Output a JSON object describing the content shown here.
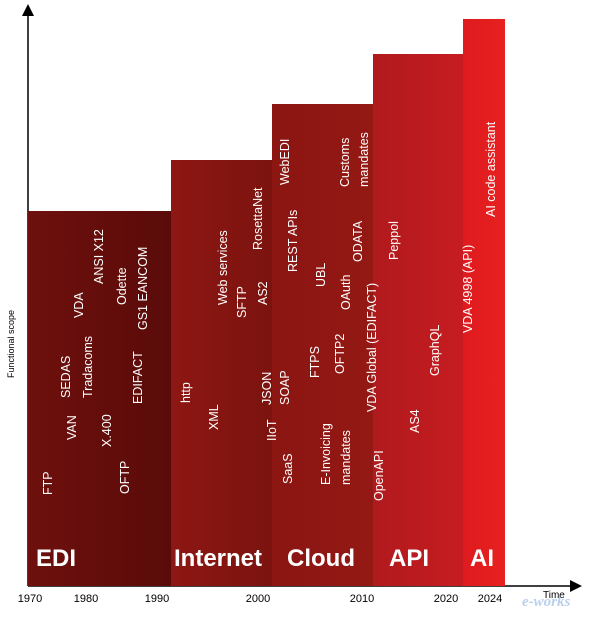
{
  "axes": {
    "y_label": "Functional scope",
    "x_label": "Time",
    "ticks": [
      "1970",
      "1980",
      "1990",
      "2000",
      "2010",
      "2020",
      "2024"
    ]
  },
  "eras": [
    {
      "label": "EDI",
      "color": "#6a0f0c"
    },
    {
      "label": "Internet",
      "color": "#8a1712"
    },
    {
      "label": "Cloud",
      "color": "#8a1712"
    },
    {
      "label": "API",
      "color": "#b51a1e"
    },
    {
      "label": "AI",
      "color": "#e01b1e"
    }
  ],
  "technologies": {
    "edi": [
      "FTP",
      "VAN",
      "SEDAS",
      "VDA",
      "Tradacoms",
      "X.400",
      "ANSI X12",
      "Odette",
      "OFTP",
      "EDIFACT",
      "GS1 EANCOM"
    ],
    "internet": [
      "http",
      "XML",
      "Web services",
      "SFTP",
      "IIoT",
      "RosettaNet",
      "JSON",
      "AS2",
      "SOAP"
    ],
    "cloud": [
      "SaaS",
      "WebEDI",
      "REST APIs",
      "FTPS",
      "E-Invoicing mandates",
      "UBL",
      "OFTP2",
      "OAuth",
      "Customs mandates",
      "ODATA"
    ],
    "api": [
      "VDA Global (EDIFACT)",
      "OpenAPI",
      "Peppol",
      "AS4",
      "GraphQL"
    ],
    "ai": [
      "VDA 4998 (API)",
      "AI code assistant"
    ]
  },
  "watermark": "e-works"
}
